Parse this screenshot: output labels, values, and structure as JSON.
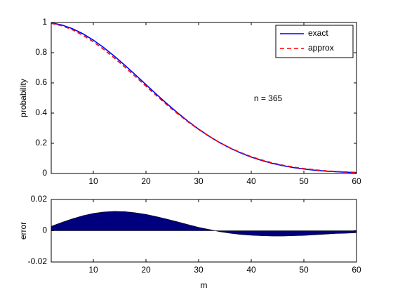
{
  "chart_data": [
    {
      "type": "line",
      "ylabel": "probability",
      "annotation": "n = 365",
      "x": [
        2,
        4,
        6,
        8,
        10,
        12,
        14,
        16,
        18,
        20,
        22,
        24,
        26,
        28,
        30,
        32,
        34,
        36,
        38,
        40,
        42,
        44,
        46,
        48,
        50,
        52,
        54,
        56,
        58,
        60
      ],
      "series": [
        {
          "name": "exact",
          "color": "#0000ff",
          "linestyle": "solid",
          "values": [
            0.9973,
            0.9836,
            0.9595,
            0.9257,
            0.8831,
            0.833,
            0.7769,
            0.7164,
            0.6531,
            0.5886,
            0.5243,
            0.4617,
            0.4018,
            0.3455,
            0.2937,
            0.2467,
            0.2046,
            0.1678,
            0.1359,
            0.1088,
            0.086,
            0.0671,
            0.0517,
            0.0394,
            0.0296,
            0.022,
            0.0162,
            0.0118,
            0.0084,
            0.0059
          ]
        },
        {
          "name": "approx",
          "color": "#ff0000",
          "linestyle": "dashed",
          "values": [
            0.9945,
            0.9783,
            0.9519,
            0.9161,
            0.872,
            0.821,
            0.7645,
            0.7042,
            0.6416,
            0.5781,
            0.5153,
            0.4543,
            0.3961,
            0.3416,
            0.2915,
            0.2459,
            0.2052,
            0.1694,
            0.1383,
            0.1117,
            0.0892,
            0.0705,
            0.0551,
            0.0426,
            0.0326,
            0.0246,
            0.0184,
            0.0136,
            0.01,
            0.0072
          ]
        }
      ],
      "xlim": [
        2,
        60
      ],
      "xticks": [
        10,
        20,
        30,
        40,
        50,
        60
      ],
      "ylim": [
        0,
        1
      ],
      "yticks": [
        0,
        0.2,
        0.4,
        0.6,
        0.8,
        1
      ],
      "legend": "upper right"
    },
    {
      "type": "area",
      "ylabel": "error",
      "xlabel": "m",
      "x": [
        2,
        4,
        6,
        8,
        10,
        12,
        14,
        16,
        18,
        20,
        22,
        24,
        26,
        28,
        30,
        32,
        34,
        36,
        38,
        40,
        42,
        44,
        46,
        48,
        50,
        52,
        54,
        56,
        58,
        60
      ],
      "series": [
        {
          "color": "#00007f",
          "values": [
            0.0028,
            0.0053,
            0.0076,
            0.0096,
            0.0111,
            0.012,
            0.0124,
            0.0122,
            0.0115,
            0.0105,
            0.009,
            0.0074,
            0.0057,
            0.0039,
            0.0022,
            0.0008,
            -0.0006,
            -0.0016,
            -0.0024,
            -0.0029,
            -0.0032,
            -0.0034,
            -0.0034,
            -0.0032,
            -0.003,
            -0.0026,
            -0.0022,
            -0.0018,
            -0.0016,
            -0.0013
          ]
        }
      ],
      "xlim": [
        2,
        60
      ],
      "xticks": [
        10,
        20,
        30,
        40,
        50,
        60
      ],
      "ylim": [
        -0.02,
        0.02
      ],
      "yticks": [
        -0.02,
        0,
        0.02
      ]
    }
  ]
}
